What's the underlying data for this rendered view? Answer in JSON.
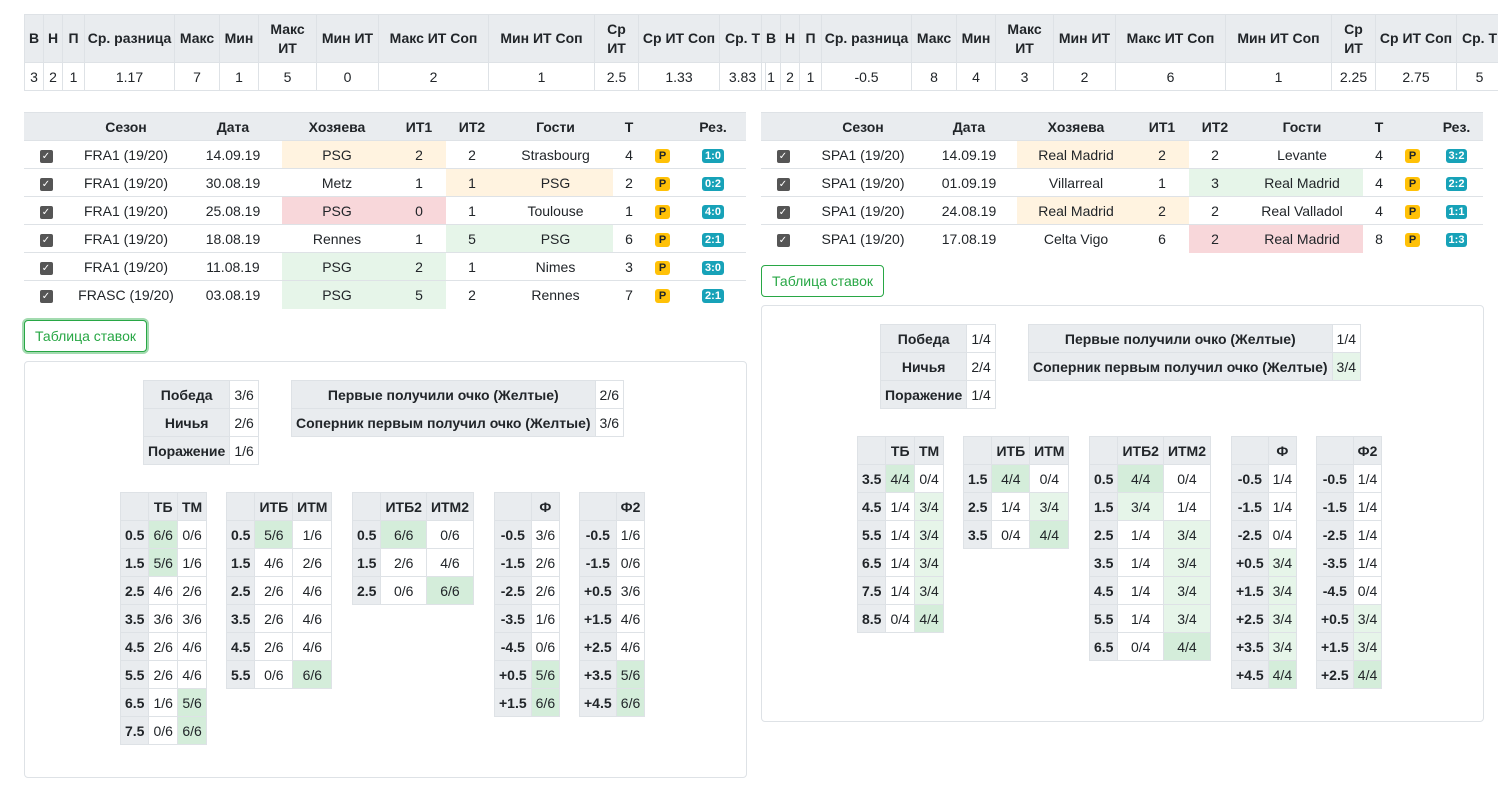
{
  "stat_headers": [
    "В",
    "Н",
    "П",
    "Ср. разница",
    "Макс",
    "Мин",
    "Макс ИТ",
    "Мин ИТ",
    "Макс ИТ Соп",
    "Мин ИТ Соп",
    "Ср ИТ",
    "Ср ИТ Соп",
    "Ср. Т"
  ],
  "game_headers": [
    "",
    "Сезон",
    "Дата",
    "Хозяева",
    "ИТ1",
    "ИТ2",
    "Гости",
    "Т",
    "",
    "Рез."
  ],
  "button_label": "Таблица ставок",
  "left": {
    "stats": [
      "3",
      "2",
      "1",
      "1.17",
      "7",
      "1",
      "5",
      "0",
      "2",
      "1",
      "2.5",
      "1.33",
      "3.83"
    ],
    "games": [
      {
        "season": "FRA1 (19/20)",
        "date": "14.09.19",
        "home": "PSG",
        "it1": "2",
        "it2": "2",
        "away": "Strasbourg",
        "t": "4",
        "p": "P",
        "res": "1:0",
        "hc": "o",
        "i1c": "o",
        "i2c": "",
        "ac": ""
      },
      {
        "season": "FRA1 (19/20)",
        "date": "30.08.19",
        "home": "Metz",
        "it1": "1",
        "it2": "1",
        "away": "PSG",
        "t": "2",
        "p": "P",
        "res": "0:2",
        "hc": "",
        "i1c": "",
        "i2c": "o",
        "ac": "o"
      },
      {
        "season": "FRA1 (19/20)",
        "date": "25.08.19",
        "home": "PSG",
        "it1": "0",
        "it2": "1",
        "away": "Toulouse",
        "t": "1",
        "p": "P",
        "res": "4:0",
        "hc": "r",
        "i1c": "r",
        "i2c": "",
        "ac": ""
      },
      {
        "season": "FRA1 (19/20)",
        "date": "18.08.19",
        "home": "Rennes",
        "it1": "1",
        "it2": "5",
        "away": "PSG",
        "t": "6",
        "p": "P",
        "res": "2:1",
        "hc": "",
        "i1c": "",
        "i2c": "g",
        "ac": "g"
      },
      {
        "season": "FRA1 (19/20)",
        "date": "11.08.19",
        "home": "PSG",
        "it1": "2",
        "it2": "1",
        "away": "Nimes",
        "t": "3",
        "p": "P",
        "res": "3:0",
        "hc": "g",
        "i1c": "g",
        "i2c": "",
        "ac": ""
      },
      {
        "season": "FRASC (19/20)",
        "date": "03.08.19",
        "home": "PSG",
        "it1": "5",
        "it2": "2",
        "away": "Rennes",
        "t": "7",
        "p": "P",
        "res": "2:1",
        "hc": "g",
        "i1c": "g",
        "i2c": "",
        "ac": ""
      }
    ],
    "summary": [
      {
        "k": "Победа",
        "v": "3/6"
      },
      {
        "k": "Ничья",
        "v": "2/6"
      },
      {
        "k": "Поражение",
        "v": "1/6"
      }
    ],
    "first": [
      {
        "k": "Первые получили очко (Желтые)",
        "v": "2/6"
      },
      {
        "k": "Соперник первым получил очко (Желтые)",
        "v": "3/6"
      }
    ],
    "tbtm": {
      "h": [
        "ТБ",
        "ТМ"
      ],
      "rows": [
        [
          "0.5",
          "6/6",
          "0/6",
          "a"
        ],
        [
          "1.5",
          "5/6",
          "1/6",
          "a"
        ],
        [
          "2.5",
          "4/6",
          "2/6",
          ""
        ],
        [
          "3.5",
          "3/6",
          "3/6",
          ""
        ],
        [
          "4.5",
          "2/6",
          "4/6",
          ""
        ],
        [
          "5.5",
          "2/6",
          "4/6",
          ""
        ],
        [
          "6.5",
          "1/6",
          "5/6",
          "b"
        ],
        [
          "7.5",
          "0/6",
          "6/6",
          "b"
        ]
      ]
    },
    "itb": {
      "h": [
        "ИТБ",
        "ИТМ"
      ],
      "rows": [
        [
          "0.5",
          "5/6",
          "1/6",
          "a"
        ],
        [
          "1.5",
          "4/6",
          "2/6",
          ""
        ],
        [
          "2.5",
          "2/6",
          "4/6",
          ""
        ],
        [
          "3.5",
          "2/6",
          "4/6",
          ""
        ],
        [
          "4.5",
          "2/6",
          "4/6",
          ""
        ],
        [
          "5.5",
          "0/6",
          "6/6",
          "b"
        ]
      ]
    },
    "itb2": {
      "h": [
        "ИТБ2",
        "ИТМ2"
      ],
      "rows": [
        [
          "0.5",
          "6/6",
          "0/6",
          "a"
        ],
        [
          "1.5",
          "2/6",
          "4/6",
          ""
        ],
        [
          "2.5",
          "0/6",
          "6/6",
          "b"
        ]
      ]
    },
    "f": {
      "h": [
        "Ф"
      ],
      "rows": [
        [
          "-0.5",
          "3/6",
          ""
        ],
        [
          "-1.5",
          "2/6",
          ""
        ],
        [
          "-2.5",
          "2/6",
          ""
        ],
        [
          "-3.5",
          "1/6",
          ""
        ],
        [
          "-4.5",
          "0/6",
          ""
        ],
        [
          "+0.5",
          "5/6",
          "a"
        ],
        [
          "+1.5",
          "6/6",
          "a"
        ]
      ]
    },
    "f2": {
      "h": [
        "Ф2"
      ],
      "rows": [
        [
          "-0.5",
          "1/6",
          ""
        ],
        [
          "-1.5",
          "0/6",
          ""
        ],
        [
          "+0.5",
          "3/6",
          ""
        ],
        [
          "+1.5",
          "4/6",
          ""
        ],
        [
          "+2.5",
          "4/6",
          ""
        ],
        [
          "+3.5",
          "5/6",
          "a"
        ],
        [
          "+4.5",
          "6/6",
          "a"
        ]
      ]
    }
  },
  "right": {
    "stats": [
      "1",
      "2",
      "1",
      "-0.5",
      "8",
      "4",
      "3",
      "2",
      "6",
      "1",
      "2.25",
      "2.75",
      "5"
    ],
    "games": [
      {
        "season": "SPA1 (19/20)",
        "date": "14.09.19",
        "home": "Real Madrid",
        "it1": "2",
        "it2": "2",
        "away": "Levante",
        "t": "4",
        "p": "P",
        "res": "3:2",
        "hc": "o",
        "i1c": "o",
        "i2c": "",
        "ac": ""
      },
      {
        "season": "SPA1 (19/20)",
        "date": "01.09.19",
        "home": "Villarreal",
        "it1": "1",
        "it2": "3",
        "away": "Real Madrid",
        "t": "4",
        "p": "P",
        "res": "2:2",
        "hc": "",
        "i1c": "",
        "i2c": "g",
        "ac": "g"
      },
      {
        "season": "SPA1 (19/20)",
        "date": "24.08.19",
        "home": "Real Madrid",
        "it1": "2",
        "it2": "2",
        "away": "Real Valladol",
        "t": "4",
        "p": "P",
        "res": "1:1",
        "hc": "o",
        "i1c": "o",
        "i2c": "",
        "ac": ""
      },
      {
        "season": "SPA1 (19/20)",
        "date": "17.08.19",
        "home": "Celta Vigo",
        "it1": "6",
        "it2": "2",
        "away": "Real Madrid",
        "t": "8",
        "p": "P",
        "res": "1:3",
        "hc": "",
        "i1c": "",
        "i2c": "r",
        "ac": "r"
      }
    ],
    "summary": [
      {
        "k": "Победа",
        "v": "1/4"
      },
      {
        "k": "Ничья",
        "v": "2/4"
      },
      {
        "k": "Поражение",
        "v": "1/4"
      }
    ],
    "first": [
      {
        "k": "Первые получили очко (Желтые)",
        "v": "1/4"
      },
      {
        "k": "Соперник первым получил очко (Желтые)",
        "v": "3/4"
      }
    ],
    "tbtm": {
      "h": [
        "ТБ",
        "ТМ"
      ],
      "rows": [
        [
          "3.5",
          "4/4",
          "0/4",
          "a"
        ],
        [
          "4.5",
          "1/4",
          "3/4",
          "c"
        ],
        [
          "5.5",
          "1/4",
          "3/4",
          "c"
        ],
        [
          "6.5",
          "1/4",
          "3/4",
          "c"
        ],
        [
          "7.5",
          "1/4",
          "3/4",
          "c"
        ],
        [
          "8.5",
          "0/4",
          "4/4",
          "b"
        ]
      ]
    },
    "itb": {
      "h": [
        "ИТБ",
        "ИТМ"
      ],
      "rows": [
        [
          "1.5",
          "4/4",
          "0/4",
          "a"
        ],
        [
          "2.5",
          "1/4",
          "3/4",
          "c"
        ],
        [
          "3.5",
          "0/4",
          "4/4",
          "b"
        ]
      ]
    },
    "itb2": {
      "h": [
        "ИТБ2",
        "ИТМ2"
      ],
      "rows": [
        [
          "0.5",
          "4/4",
          "0/4",
          "a"
        ],
        [
          "1.5",
          "3/4",
          "1/4",
          "d"
        ],
        [
          "2.5",
          "1/4",
          "3/4",
          "c"
        ],
        [
          "3.5",
          "1/4",
          "3/4",
          "c"
        ],
        [
          "4.5",
          "1/4",
          "3/4",
          "c"
        ],
        [
          "5.5",
          "1/4",
          "3/4",
          "c"
        ],
        [
          "6.5",
          "0/4",
          "4/4",
          "b"
        ]
      ]
    },
    "f": {
      "h": [
        "Ф"
      ],
      "rows": [
        [
          "-0.5",
          "1/4",
          ""
        ],
        [
          "-1.5",
          "1/4",
          ""
        ],
        [
          "-2.5",
          "0/4",
          ""
        ],
        [
          "+0.5",
          "3/4",
          "c"
        ],
        [
          "+1.5",
          "3/4",
          "c"
        ],
        [
          "+2.5",
          "3/4",
          "c"
        ],
        [
          "+3.5",
          "3/4",
          "c"
        ],
        [
          "+4.5",
          "4/4",
          "a"
        ]
      ]
    },
    "f2": {
      "h": [
        "Ф2"
      ],
      "rows": [
        [
          "-0.5",
          "1/4",
          ""
        ],
        [
          "-1.5",
          "1/4",
          ""
        ],
        [
          "-2.5",
          "1/4",
          ""
        ],
        [
          "-3.5",
          "1/4",
          ""
        ],
        [
          "-4.5",
          "0/4",
          ""
        ],
        [
          "+0.5",
          "3/4",
          "c"
        ],
        [
          "+1.5",
          "3/4",
          "c"
        ],
        [
          "+2.5",
          "4/4",
          "a"
        ]
      ]
    }
  }
}
